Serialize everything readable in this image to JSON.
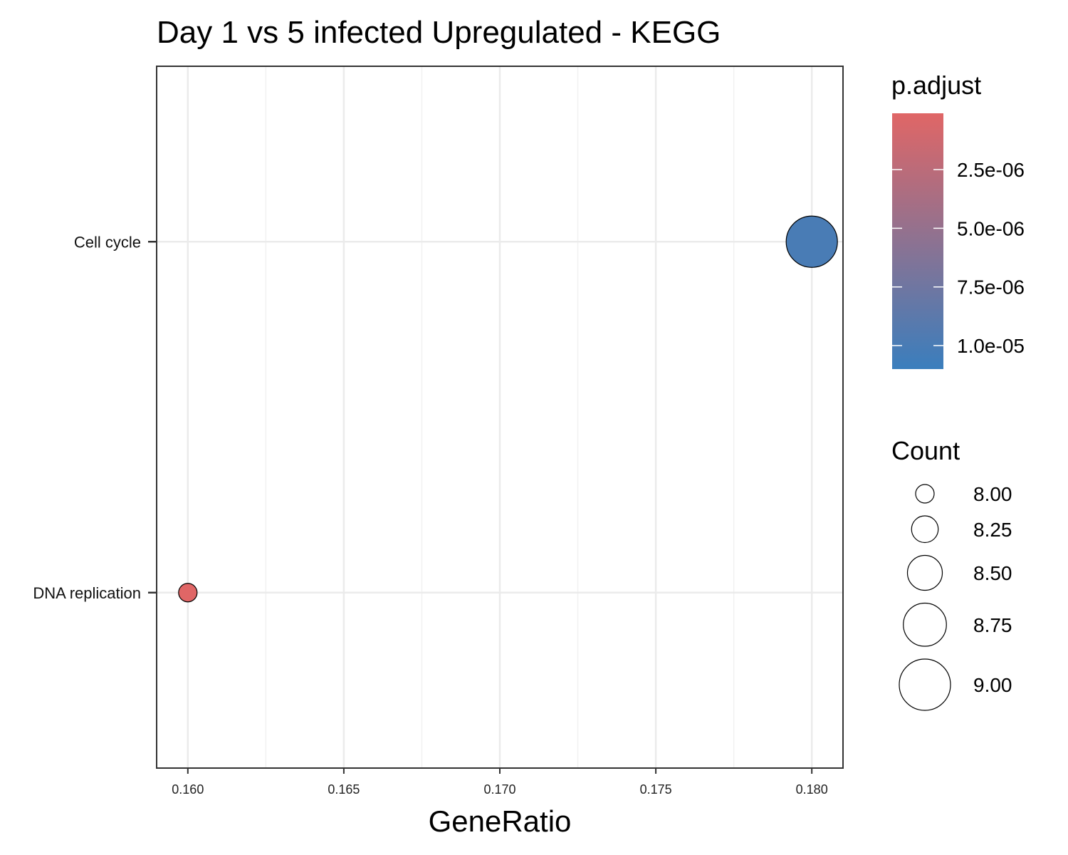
{
  "chart_data": {
    "type": "scatter",
    "title": "Day 1 vs 5 infected Upregulated - KEGG",
    "xlabel": "GeneRatio",
    "ylabel": "",
    "xlim": [
      0.159,
      0.181
    ],
    "x_ticks": [
      "0.160",
      "0.165",
      "0.170",
      "0.175",
      "0.180"
    ],
    "x_tick_values": [
      0.16,
      0.165,
      0.17,
      0.175,
      0.18
    ],
    "categories": [
      "DNA replication",
      "Cell cycle"
    ],
    "points": [
      {
        "label": "Cell cycle",
        "x": 0.18,
        "count": 9,
        "p_adjust": 1e-05
      },
      {
        "label": "DNA replication",
        "x": 0.16,
        "count": 8,
        "p_adjust": 1e-07
      }
    ],
    "grid": true,
    "legend_placement": "right",
    "color_legend": {
      "title": "p.adjust",
      "low_color": "#3a7ebd",
      "high_color": "#e06666",
      "ticks": [
        "2.5e-06",
        "5.0e-06",
        "7.5e-06",
        "1.0e-05"
      ],
      "tick_values": [
        2.5e-06,
        5e-06,
        7.5e-06,
        1e-05
      ],
      "range": [
        1e-07,
        1.1e-05
      ]
    },
    "size_legend": {
      "title": "Count",
      "labels": [
        "8.00",
        "8.25",
        "8.50",
        "8.75",
        "9.00"
      ],
      "values": [
        8.0,
        8.25,
        8.5,
        8.75,
        9.0
      ]
    }
  }
}
